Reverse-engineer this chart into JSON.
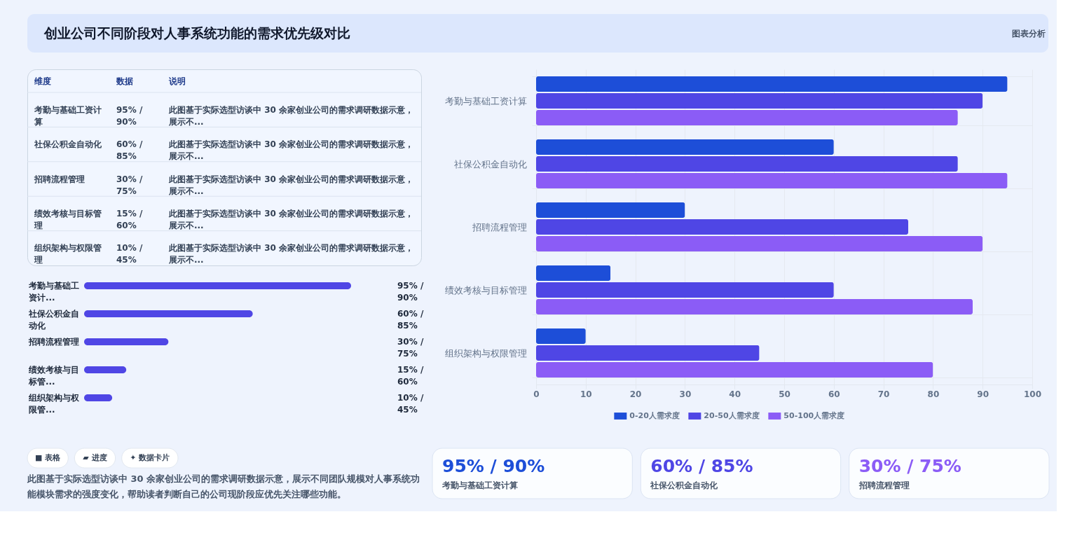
{
  "chart_data": [
    {
      "type": "other",
      "title": "创业公司不同阶段对人事系统功能的需求优先级对比",
      "annotations": [
        "图表分析"
      ]
    },
    {
      "type": "other",
      "annotations": [
        "维度",
        "数据",
        "说明",
        "考勤与基础工资计算",
        "95% / 90%",
        "此图基于实际选型访谈中 30 余家创业公司的需求调研数据示意，展示不...",
        "社保公积金自动化",
        "60% / 85%",
        "此图基于实际选型访谈中 30 余家创业公司的需求调研数据示意，展示不...",
        "招聘流程管理",
        "30% / 75%",
        "此图基于实际选型访谈中 30 余家创业公司的需求调研数据示意，展示不...",
        "绩效考核与目标管理",
        "15% / 60%",
        "此图基于实际选型访谈中 30 余家创业公司的需求调研数据示意，展示不...",
        "组织架构与权限管理",
        "10% / 45%",
        "此图基于实际选型访谈中 30 余家创业公司的需求调研数据示意，展示不..."
      ]
    },
    {
      "type": "bar",
      "orientation": "horizontal",
      "tick_labels": "y",
      "categories": [
        "考勤与基础工资计...",
        "社保公积金自动化",
        "招聘流程管理",
        "绩效考核与目标管...",
        "组织架构与权限管..."
      ],
      "values": [
        95,
        60,
        30,
        15,
        10
      ],
      "value_labels": [
        "95% / 90%",
        "60% / 85%",
        "30% / 75%",
        "15% / 60%",
        "10% / 45%"
      ],
      "color": "#4f46e5"
    },
    {
      "type": "other",
      "annotations": [
        "■ 表格",
        "▰ 进度",
        "✦ 数据卡片",
        "此图基于实际选型访谈中 30 余家创业公司的需求调研数据示意，展示不同团队规模对人事系统功能模块需求的强度变化，帮助读者判断自己的公司现阶段应优先关注哪些功能。"
      ]
    },
    {
      "type": "bar",
      "orientation": "horizontal",
      "categories": [
        "考勤与基础工资计算",
        "社保公积金自动化",
        "招聘流程管理",
        "绩效考核与目标管理",
        "组织架构与权限管理"
      ],
      "series": [
        {
          "name": "0-20人需求度",
          "color": "#1d4ed8",
          "values": [
            95,
            60,
            30,
            15,
            10
          ]
        },
        {
          "name": "20-50人需求度",
          "color": "#4f46e5",
          "values": [
            90,
            85,
            75,
            60,
            45
          ]
        },
        {
          "name": "50-100人需求度",
          "color": "#8b5cf6",
          "values": [
            85,
            95,
            90,
            88,
            80
          ]
        }
      ],
      "xlim": [
        0,
        100
      ],
      "xticks": [
        0,
        10,
        20,
        30,
        40,
        50,
        60,
        70,
        80,
        90,
        100
      ],
      "grid": true,
      "legend": "bottom"
    },
    {
      "type": "other",
      "annotations": [
        "95% / 90%",
        "考勤与基础工资计算",
        "60% / 85%",
        "社保公积金自动化",
        "30% / 75%",
        "招聘流程管理"
      ]
    }
  ]
}
